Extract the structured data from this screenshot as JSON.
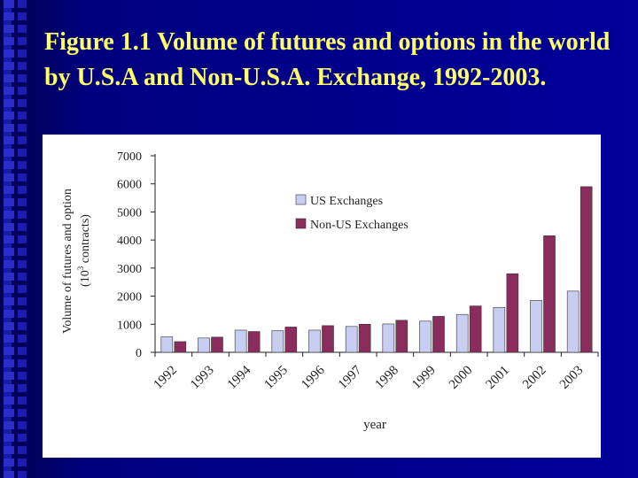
{
  "slide": {
    "title": "Figure 1.1 Volume of futures and options in the world by U.S.A and Non-U.S.A. Exchange, 1992-2003."
  },
  "colors": {
    "background": "#00007e",
    "title": "#ffff66",
    "us_series": "#c8cdf2",
    "nonus_series": "#8b2d5c"
  },
  "chart_data": {
    "type": "bar",
    "title": "",
    "xlabel": "year",
    "ylabel_line1": "Volume of futures and option",
    "ylabel_line2_prefix": "(10",
    "ylabel_line2_sup": "3",
    "ylabel_line2_suffix": " contracts)",
    "ylim": [
      0,
      7000
    ],
    "yticks": [
      "0",
      "1000",
      "2000",
      "3000",
      "4000",
      "5000",
      "6000",
      "7000"
    ],
    "ytick_values": [
      0,
      1000,
      2000,
      3000,
      4000,
      5000,
      6000,
      7000
    ],
    "categories": [
      "1992",
      "1993",
      "1994",
      "1995",
      "1996",
      "1997",
      "1998",
      "1999",
      "2000",
      "2001",
      "2002",
      "2003"
    ],
    "legend_position": "top-center",
    "series": [
      {
        "name": "US Exchanges",
        "values": [
          550,
          510,
          790,
          770,
          790,
          920,
          1010,
          1110,
          1350,
          1600,
          1850,
          2180
        ]
      },
      {
        "name": "Non-US Exchanges",
        "values": [
          380,
          540,
          740,
          900,
          950,
          1000,
          1140,
          1280,
          1650,
          2800,
          4150,
          5900
        ]
      }
    ]
  }
}
